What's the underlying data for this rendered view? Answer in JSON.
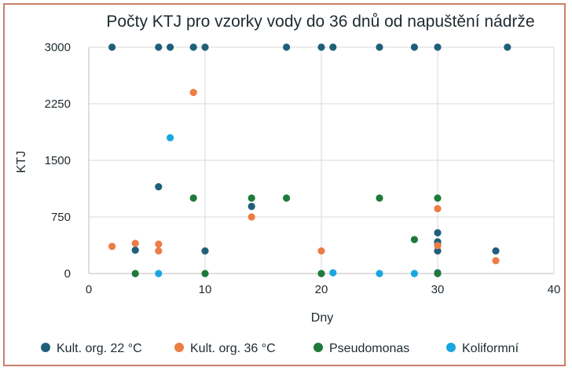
{
  "chart_data": {
    "type": "scatter",
    "title": "Počty KTJ pro vzorky vody do 36 dnů od napuštění nádrže",
    "xlabel": "Dny",
    "ylabel": "KTJ",
    "xlim": [
      0,
      40
    ],
    "ylim": [
      0,
      3000
    ],
    "x_ticks": [
      "0",
      "10",
      "20",
      "30",
      "40"
    ],
    "y_ticks": [
      "0",
      "750",
      "1500",
      "2250",
      "3000"
    ],
    "grid": true,
    "legend_position": "bottom",
    "series": [
      {
        "name": "Kult. org. 22 °C",
        "color": "#1f5f7a",
        "points": [
          [
            2,
            3000
          ],
          [
            6,
            3000
          ],
          [
            7,
            3000
          ],
          [
            9,
            3000
          ],
          [
            10,
            3000
          ],
          [
            17,
            3000
          ],
          [
            20,
            3000
          ],
          [
            21,
            3000
          ],
          [
            25,
            3000
          ],
          [
            28,
            3000
          ],
          [
            30,
            3000
          ],
          [
            36,
            3000
          ],
          [
            4,
            310
          ],
          [
            6,
            1150
          ],
          [
            10,
            300
          ],
          [
            14,
            890
          ],
          [
            30,
            540
          ],
          [
            30,
            420
          ],
          [
            30,
            380
          ],
          [
            30,
            300
          ],
          [
            30,
            10
          ],
          [
            35,
            300
          ]
        ]
      },
      {
        "name": "Kult. org. 36 °C",
        "color": "#ed7d45",
        "points": [
          [
            2,
            360
          ],
          [
            4,
            400
          ],
          [
            6,
            390
          ],
          [
            6,
            300
          ],
          [
            9,
            2400
          ],
          [
            14,
            750
          ],
          [
            20,
            300
          ],
          [
            30,
            860
          ],
          [
            30,
            370
          ],
          [
            35,
            170
          ]
        ]
      },
      {
        "name": "Pseudomonas",
        "color": "#1e7a3a",
        "points": [
          [
            4,
            0
          ],
          [
            9,
            1000
          ],
          [
            10,
            0
          ],
          [
            14,
            1000
          ],
          [
            17,
            1000
          ],
          [
            20,
            0
          ],
          [
            25,
            1000
          ],
          [
            28,
            450
          ],
          [
            30,
            1000
          ],
          [
            30,
            0
          ]
        ]
      },
      {
        "name": "Koliformní",
        "color": "#1aa6e0",
        "points": [
          [
            6,
            0
          ],
          [
            7,
            1800
          ],
          [
            21,
            10
          ],
          [
            25,
            0
          ],
          [
            28,
            0
          ]
        ]
      }
    ]
  }
}
